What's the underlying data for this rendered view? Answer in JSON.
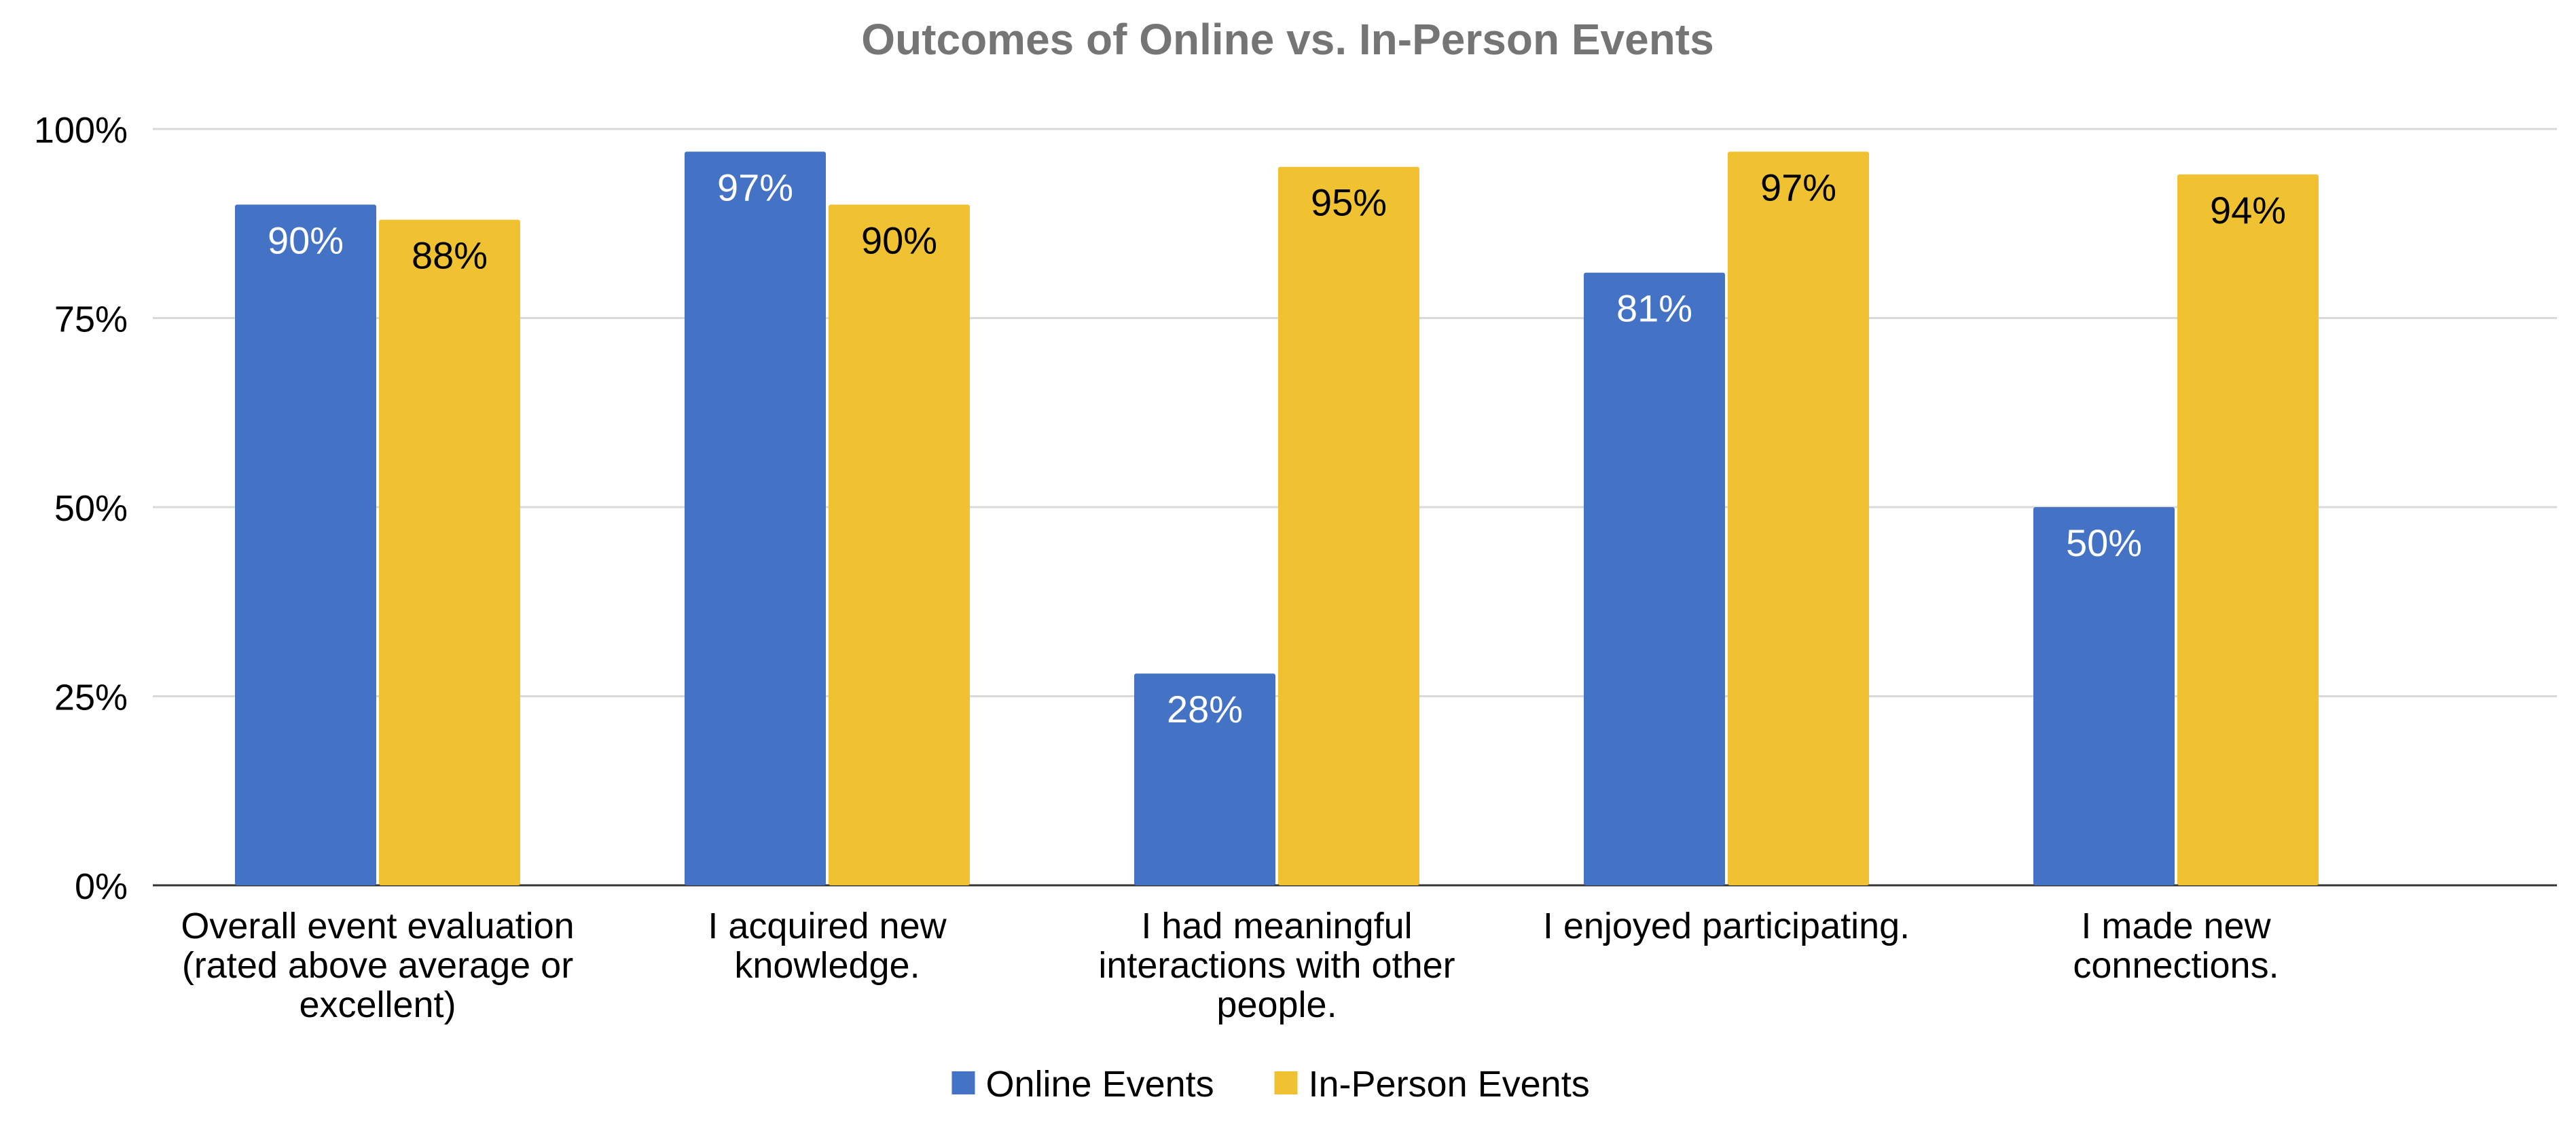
{
  "chart_data": {
    "type": "bar",
    "title": "Outcomes of Online vs. In-Person Events",
    "xlabel": "",
    "ylabel": "",
    "ylim": [
      0,
      100
    ],
    "yticks": [
      0,
      25,
      50,
      75,
      100
    ],
    "ytick_labels": [
      "0%",
      "25%",
      "50%",
      "75%",
      "100%"
    ],
    "grid": true,
    "legend_position": "bottom-center",
    "categories": [
      [
        "Overall event evaluation",
        "(rated above average or",
        "excellent)"
      ],
      [
        "I acquired new",
        "knowledge."
      ],
      [
        "I had meaningful",
        "interactions with other",
        "people."
      ],
      [
        "I enjoyed participating."
      ],
      [
        "I made new",
        "connections."
      ]
    ],
    "series": [
      {
        "name": "Online Events",
        "color": "#4472c4",
        "label_color": "#ffffff",
        "values": [
          90,
          97,
          28,
          81,
          50
        ],
        "labels": [
          "90%",
          "97%",
          "28%",
          "81%",
          "50%"
        ]
      },
      {
        "name": "In-Person Events",
        "color": "#f0c232",
        "label_color": "#000000",
        "values": [
          88,
          90,
          95,
          97,
          94
        ],
        "labels": [
          "88%",
          "90%",
          "95%",
          "97%",
          "94%"
        ]
      }
    ],
    "colors": {
      "title": "#757575",
      "gridline": "#d9d9d9",
      "axis": "#333333",
      "text": "#000000"
    }
  }
}
